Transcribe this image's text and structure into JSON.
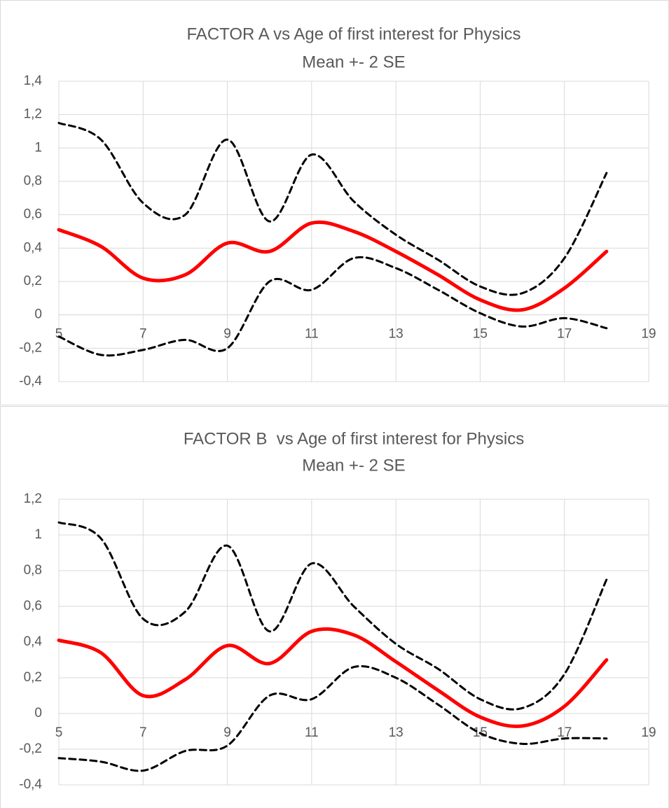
{
  "chart_data": [
    {
      "type": "line",
      "title": "FACTOR A vs Age of first interest for Physics",
      "subtitle": "Mean +- 2 SE",
      "x": [
        5,
        6,
        7,
        8,
        9,
        10,
        11,
        12,
        13,
        14,
        15,
        16,
        17,
        18
      ],
      "xlim": [
        5,
        19
      ],
      "xticks": [
        5,
        7,
        9,
        11,
        13,
        15,
        17,
        19
      ],
      "ylim": [
        -0.4,
        1.4
      ],
      "yticks": [
        {
          "value": -0.4,
          "label": "-0,4"
        },
        {
          "value": -0.2,
          "label": "-0,2"
        },
        0,
        {
          "value": 0.2,
          "label": "0,2"
        },
        {
          "value": 0.4,
          "label": "0,4"
        },
        {
          "value": 0.6,
          "label": "0,6"
        },
        {
          "value": 0.8,
          "label": "0,8"
        },
        1,
        {
          "value": 1.2,
          "label": "1,2"
        },
        {
          "value": 1.4,
          "label": "1,4"
        }
      ],
      "grid": true,
      "series": [
        {
          "color": "#000000",
          "line_style": "dashed",
          "values": [
            1.15,
            1.05,
            0.67,
            0.6,
            1.05,
            0.56,
            0.96,
            0.68,
            0.48,
            0.33,
            0.17,
            0.13,
            0.34,
            0.85
          ]
        },
        {
          "color": "#ff0000",
          "line_style": "solid",
          "values": [
            0.51,
            0.41,
            0.22,
            0.24,
            0.43,
            0.38,
            0.55,
            0.5,
            0.38,
            0.24,
            0.09,
            0.03,
            0.16,
            0.38
          ]
        },
        {
          "color": "#000000",
          "line_style": "dashed",
          "values": [
            -0.13,
            -0.24,
            -0.21,
            -0.15,
            -0.2,
            0.2,
            0.15,
            0.34,
            0.28,
            0.15,
            0.01,
            -0.07,
            -0.02,
            -0.08
          ]
        }
      ]
    },
    {
      "type": "line",
      "title": "FACTOR B  vs Age of first interest for Physics",
      "subtitle": "Mean +- 2 SE",
      "x": [
        5,
        6,
        7,
        8,
        9,
        10,
        11,
        12,
        13,
        14,
        15,
        16,
        17,
        18
      ],
      "xlim": [
        5,
        19
      ],
      "xticks": [
        5,
        7,
        9,
        11,
        13,
        15,
        17,
        19
      ],
      "ylim": [
        -0.4,
        1.2
      ],
      "yticks": [
        {
          "value": -0.4,
          "label": "-0,4"
        },
        {
          "value": -0.2,
          "label": "-0,2"
        },
        0,
        {
          "value": 0.2,
          "label": "0,2"
        },
        {
          "value": 0.4,
          "label": "0,4"
        },
        {
          "value": 0.6,
          "label": "0,6"
        },
        {
          "value": 0.8,
          "label": "0,8"
        },
        1,
        {
          "value": 1.2,
          "label": "1,2"
        }
      ],
      "grid": true,
      "series": [
        {
          "color": "#000000",
          "line_style": "dashed",
          "values": [
            1.07,
            0.98,
            0.53,
            0.57,
            0.94,
            0.46,
            0.84,
            0.6,
            0.39,
            0.25,
            0.08,
            0.03,
            0.22,
            0.75
          ]
        },
        {
          "color": "#ff0000",
          "line_style": "solid",
          "values": [
            0.41,
            0.34,
            0.1,
            0.19,
            0.38,
            0.28,
            0.46,
            0.44,
            0.29,
            0.13,
            -0.02,
            -0.07,
            0.04,
            0.3
          ]
        },
        {
          "color": "#000000",
          "line_style": "dashed",
          "values": [
            -0.25,
            -0.27,
            -0.32,
            -0.21,
            -0.18,
            0.1,
            0.08,
            0.26,
            0.2,
            0.05,
            -0.11,
            -0.17,
            -0.14,
            -0.14
          ]
        }
      ]
    }
  ]
}
